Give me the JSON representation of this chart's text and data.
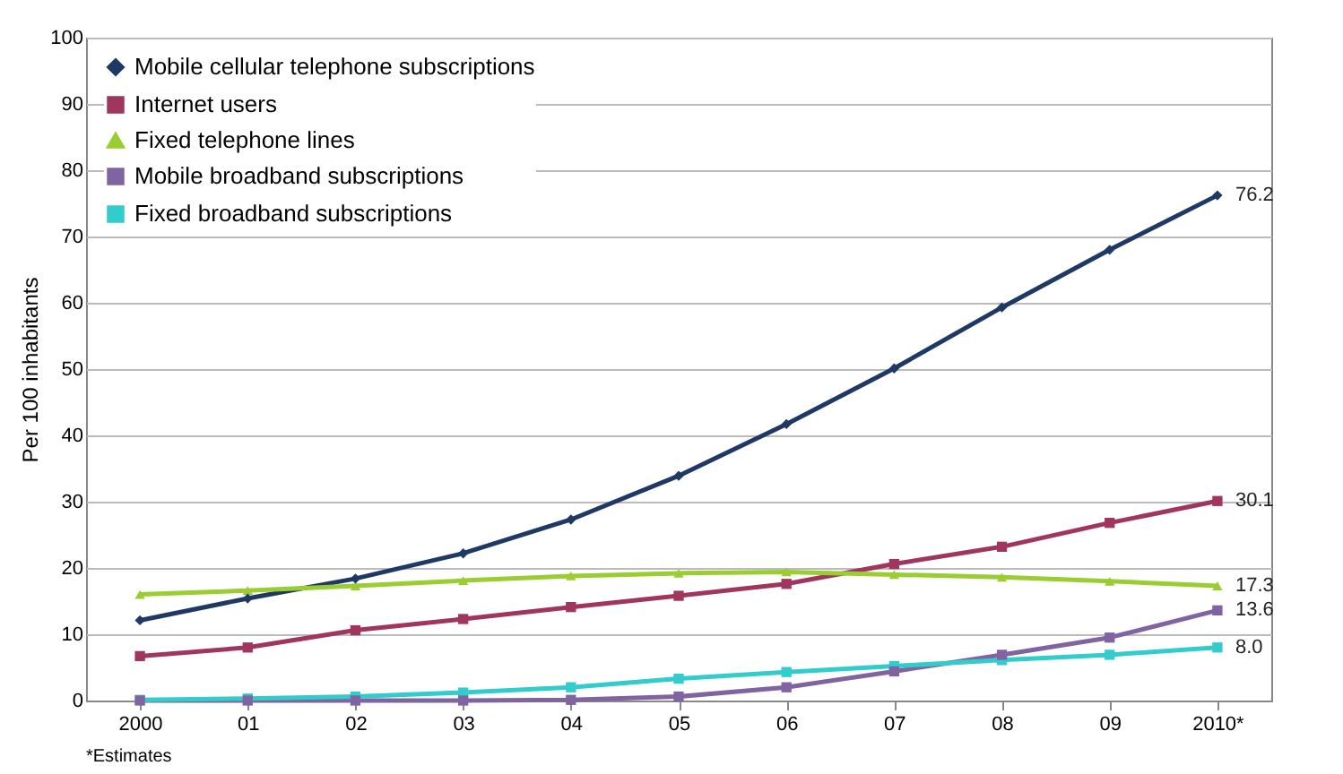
{
  "chart_data": {
    "type": "line",
    "categories": [
      "2000",
      "01",
      "02",
      "03",
      "04",
      "05",
      "06",
      "07",
      "08",
      "09",
      "2010*"
    ],
    "ylabel": "Per 100 inhabitants",
    "ylim": [
      0,
      100
    ],
    "yticks": [
      0,
      10,
      20,
      30,
      40,
      50,
      60,
      70,
      80,
      90,
      100
    ],
    "grid": "y",
    "legend": "top left",
    "annotations": [
      "*Estimates"
    ],
    "series": [
      {
        "name": "Mobile cellular telephone subscriptions",
        "color": "#1f3864",
        "marker": "diamond",
        "values": [
          12.1,
          15.4,
          18.4,
          22.2,
          27.3,
          33.9,
          41.7,
          50.1,
          59.3,
          68.0,
          76.2
        ],
        "value_labels": [
          null,
          null,
          null,
          null,
          null,
          null,
          null,
          null,
          null,
          null,
          "76.2"
        ]
      },
      {
        "name": "Internet users",
        "color": "#a0365e",
        "marker": "square",
        "values": [
          6.7,
          8.0,
          10.6,
          12.3,
          14.1,
          15.8,
          17.6,
          20.6,
          23.2,
          26.8,
          30.1
        ],
        "value_labels": [
          null,
          null,
          null,
          null,
          null,
          null,
          null,
          null,
          null,
          null,
          "30.1"
        ]
      },
      {
        "name": "Fixed telephone lines",
        "color": "#9acd32",
        "marker": "triangle",
        "values": [
          16.0,
          16.6,
          17.3,
          18.1,
          18.8,
          19.2,
          19.4,
          19.0,
          18.6,
          18.0,
          17.3
        ],
        "value_labels": [
          null,
          null,
          null,
          null,
          null,
          null,
          null,
          null,
          null,
          null,
          "17.3"
        ]
      },
      {
        "name": "Mobile broadband subscriptions",
        "color": "#8064a2",
        "marker": "square",
        "values": [
          0,
          0,
          0,
          0,
          0.1,
          0.6,
          2.0,
          4.4,
          6.9,
          9.5,
          13.6
        ],
        "value_labels": [
          null,
          null,
          null,
          null,
          null,
          null,
          null,
          null,
          null,
          null,
          "13.6"
        ]
      },
      {
        "name": "Fixed broadband subscriptions",
        "color": "#33cccc",
        "marker": "square",
        "values": [
          0.1,
          0.3,
          0.6,
          1.2,
          2.0,
          3.3,
          4.3,
          5.2,
          6.1,
          6.9,
          8.0
        ],
        "value_labels": [
          null,
          null,
          null,
          null,
          null,
          null,
          null,
          null,
          null,
          null,
          "8.0"
        ]
      }
    ]
  }
}
